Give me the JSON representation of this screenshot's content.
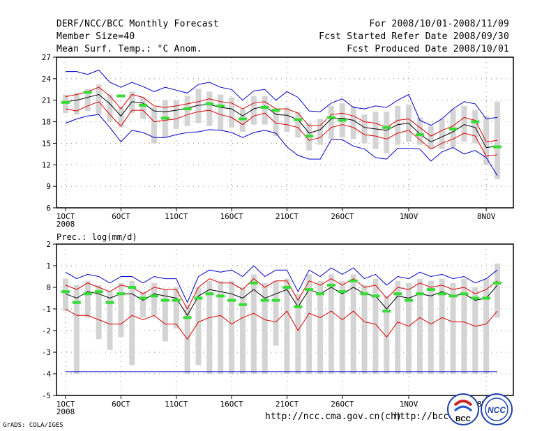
{
  "header": {
    "title": "DERF/NCC/BCC Monthly Forecast",
    "members": "Member Size=40",
    "variable": "Mean Surf. Temp.: °C Anom.",
    "period": "For 2008/10/01-2008/11/09",
    "started": "Fcst Started Refer Date 2008/09/30",
    "produced": "Fcst Produced Date 2008/10/01"
  },
  "footer": {
    "url1": "http://ncc.cma.gov.cn(ch)",
    "url2": "http://bcc.",
    "credit": "GrADS: COLA/IGES",
    "logo_left": "BCC",
    "logo_right": "NCC"
  },
  "colors": {
    "envelope": "#0000cc",
    "spread": "#dd0000",
    "mean": "#000000",
    "obs": "#33dd33",
    "box": "#d4d4d4",
    "grid": "#888888"
  },
  "chart_data": [
    {
      "type": "line",
      "title": "Mean Surf. Temp.: °C Anom.",
      "ylim": [
        6,
        27
      ],
      "yticks": [
        6,
        9,
        12,
        15,
        18,
        21,
        24,
        27
      ],
      "xticks": [
        {
          "day": 1,
          "label": "1OCT",
          "sub": "2008"
        },
        {
          "day": 6,
          "label": "6OCT"
        },
        {
          "day": 11,
          "label": "11OCT"
        },
        {
          "day": 16,
          "label": "16OCT"
        },
        {
          "day": 21,
          "label": "21OCT"
        },
        {
          "day": 26,
          "label": "26OCT"
        },
        {
          "day": 32,
          "label": "1NOV"
        },
        {
          "day": 39,
          "label": "8NOV"
        }
      ],
      "x": [
        1,
        2,
        3,
        4,
        5,
        6,
        7,
        8,
        9,
        10,
        11,
        12,
        13,
        14,
        15,
        16,
        17,
        18,
        19,
        20,
        21,
        22,
        23,
        24,
        25,
        26,
        27,
        28,
        29,
        30,
        31,
        32,
        33,
        34,
        35,
        36,
        37,
        38,
        39,
        40
      ],
      "series": [
        {
          "name": "max",
          "values": [
            25.0,
            25.0,
            24.6,
            25.2,
            23.5,
            22.8,
            23.5,
            22.9,
            22.2,
            22.8,
            22.4,
            22.0,
            23.2,
            23.5,
            22.8,
            22.5,
            21.0,
            22.3,
            22.5,
            21.0,
            22.2,
            21.4,
            19.5,
            19.4,
            20.6,
            21.2,
            20.0,
            19.8,
            20.2,
            20.0,
            21.0,
            21.8,
            18.2,
            17.5,
            18.4,
            19.8,
            20.8,
            20.5,
            18.4,
            18.6
          ]
        },
        {
          "name": "spread_upper",
          "values": [
            21.5,
            21.8,
            22.2,
            22.8,
            21.6,
            19.8,
            21.8,
            21.4,
            20.2,
            20.0,
            20.2,
            20.5,
            20.8,
            21.2,
            20.8,
            20.6,
            19.8,
            20.6,
            20.8,
            19.8,
            19.8,
            19.2,
            17.4,
            17.5,
            19.0,
            19.2,
            18.8,
            18.0,
            17.8,
            17.2,
            18.2,
            18.4,
            17.2,
            16.0,
            16.8,
            17.4,
            18.6,
            18.2,
            15.2,
            15.4
          ]
        },
        {
          "name": "mean",
          "values": [
            20.8,
            21.0,
            21.4,
            21.8,
            20.5,
            18.8,
            20.8,
            20.6,
            19.5,
            19.4,
            19.6,
            19.9,
            20.3,
            20.4,
            20.0,
            19.8,
            18.8,
            19.8,
            20.2,
            19.0,
            18.9,
            18.3,
            16.4,
            16.9,
            18.4,
            18.5,
            18.2,
            17.2,
            17.0,
            16.8,
            17.6,
            17.8,
            16.3,
            15.2,
            15.9,
            16.6,
            17.6,
            17.2,
            14.4,
            14.6
          ]
        },
        {
          "name": "spread_lower",
          "values": [
            19.8,
            19.5,
            20.2,
            20.8,
            19.0,
            17.4,
            19.6,
            19.6,
            18.0,
            18.2,
            18.4,
            19.0,
            19.4,
            19.6,
            19.0,
            18.6,
            17.6,
            18.8,
            19.2,
            17.8,
            17.6,
            17.2,
            15.4,
            15.8,
            17.2,
            17.6,
            17.2,
            16.2,
            16.0,
            15.6,
            16.4,
            16.8,
            15.5,
            14.2,
            15.0,
            15.6,
            16.4,
            16.0,
            13.2,
            13.4
          ]
        },
        {
          "name": "min",
          "values": [
            17.8,
            18.4,
            18.8,
            19.0,
            17.2,
            15.2,
            16.8,
            16.5,
            15.8,
            15.8,
            16.2,
            16.5,
            16.6,
            16.9,
            16.8,
            16.5,
            15.8,
            16.5,
            16.8,
            16.4,
            14.5,
            13.3,
            12.8,
            12.8,
            15.5,
            15.5,
            14.6,
            14.2,
            13.0,
            12.8,
            14.3,
            14.3,
            14.2,
            12.5,
            13.8,
            14.4,
            13.5,
            14.0,
            13.0,
            10.5
          ]
        }
      ],
      "boxes": [
        {
          "low": 19.2,
          "high": 21.8
        },
        {
          "low": 19.0,
          "high": 22.0
        },
        {
          "low": 19.5,
          "high": 22.6
        },
        {
          "low": 19.0,
          "high": 23.2
        },
        {
          "low": 18.0,
          "high": 21.8
        },
        {
          "low": 17.2,
          "high": 20.0
        },
        {
          "low": 19.2,
          "high": 22.2
        },
        {
          "low": 18.4,
          "high": 21.4
        },
        {
          "low": 15.0,
          "high": 20.0
        },
        {
          "low": 15.8,
          "high": 21.0
        },
        {
          "low": 17.0,
          "high": 21.0
        },
        {
          "low": 17.4,
          "high": 21.6
        },
        {
          "low": 17.8,
          "high": 22.6
        },
        {
          "low": 17.4,
          "high": 22.2
        },
        {
          "low": 16.8,
          "high": 21.8
        },
        {
          "low": 17.2,
          "high": 21.4
        },
        {
          "low": 16.6,
          "high": 19.8
        },
        {
          "low": 17.6,
          "high": 21.6
        },
        {
          "low": 17.6,
          "high": 21.6
        },
        {
          "low": 16.0,
          "high": 19.8
        },
        {
          "low": 16.6,
          "high": 20.0
        },
        {
          "low": 15.8,
          "high": 19.4
        },
        {
          "low": 14.0,
          "high": 17.8
        },
        {
          "low": 14.8,
          "high": 18.4
        },
        {
          "low": 15.6,
          "high": 20.2
        },
        {
          "low": 15.8,
          "high": 20.6
        },
        {
          "low": 15.6,
          "high": 20.2
        },
        {
          "low": 15.0,
          "high": 19.0
        },
        {
          "low": 14.2,
          "high": 19.4
        },
        {
          "low": 13.6,
          "high": 19.4
        },
        {
          "low": 14.8,
          "high": 20.2
        },
        {
          "low": 15.2,
          "high": 20.4
        },
        {
          "low": 14.8,
          "high": 18.6
        },
        {
          "low": 14.2,
          "high": 17.4
        },
        {
          "low": 14.2,
          "high": 18.4
        },
        {
          "low": 14.4,
          "high": 19.8
        },
        {
          "low": 15.2,
          "high": 20.2
        },
        {
          "low": 15.0,
          "high": 19.6
        },
        {
          "low": 12.0,
          "high": 18.8
        },
        {
          "low": 10.0,
          "high": 20.8
        }
      ],
      "obs": [
        20.7,
        null,
        22.1,
        null,
        null,
        21.6,
        null,
        20.3,
        null,
        18.5,
        null,
        19.8,
        null,
        20.5,
        20.2,
        null,
        18.4,
        null,
        20.0,
        19.6,
        null,
        18.3,
        16.0,
        null,
        18.6,
        18.2,
        null,
        null,
        null,
        17.2,
        null,
        null,
        16.2,
        null,
        null,
        17.0,
        null,
        18.0,
        null,
        14.5
      ]
    },
    {
      "type": "line",
      "title": "Prec.: log(mm/d)",
      "ylabel": "Prec.: log(mm/d)",
      "ylim": [
        -5,
        2
      ],
      "yticks": [
        -5,
        -4,
        -3,
        -2,
        -1,
        0,
        1,
        2
      ],
      "xticks": [
        {
          "day": 1,
          "label": "1OCT",
          "sub": "2008"
        },
        {
          "day": 6,
          "label": "6OCT"
        },
        {
          "day": 11,
          "label": "11OCT"
        },
        {
          "day": 16,
          "label": "16OCT"
        },
        {
          "day": 21,
          "label": "21OCT"
        },
        {
          "day": 26,
          "label": "26OCT"
        },
        {
          "day": 32,
          "label": "1NOV"
        },
        {
          "day": 39,
          "label": "8NOV"
        }
      ],
      "x": [
        1,
        2,
        3,
        4,
        5,
        6,
        7,
        8,
        9,
        10,
        11,
        12,
        13,
        14,
        15,
        16,
        17,
        18,
        19,
        20,
        21,
        22,
        23,
        24,
        25,
        26,
        27,
        28,
        29,
        30,
        31,
        32,
        33,
        34,
        35,
        36,
        37,
        38,
        39,
        40
      ],
      "series": [
        {
          "name": "max",
          "values": [
            0.7,
            0.4,
            0.6,
            0.5,
            0.2,
            0.5,
            0.5,
            0.2,
            0.5,
            0.4,
            0.4,
            -0.7,
            0.5,
            0.8,
            0.7,
            0.8,
            0.5,
            1.0,
            0.5,
            0.8,
            0.8,
            -0.2,
            0.8,
            0.5,
            0.9,
            0.6,
            0.9,
            0.4,
            0.6,
            0.1,
            0.5,
            0.4,
            0.7,
            0.5,
            0.6,
            0.4,
            0.5,
            0.2,
            0.4,
            0.8
          ]
        },
        {
          "name": "spread_upper",
          "values": [
            0.1,
            -0.1,
            0.2,
            0.0,
            -0.2,
            0.1,
            0.0,
            -0.3,
            0.0,
            -0.1,
            -0.1,
            -1.0,
            0.0,
            0.4,
            0.2,
            0.2,
            -0.1,
            0.4,
            0.0,
            0.3,
            0.3,
            -0.6,
            0.3,
            0.1,
            0.4,
            0.1,
            0.4,
            0.0,
            0.1,
            -0.5,
            0.0,
            -0.1,
            0.2,
            0.0,
            0.1,
            -0.1,
            0.0,
            -0.3,
            -0.1,
            0.3
          ]
        },
        {
          "name": "mean",
          "values": [
            -0.3,
            -0.5,
            -0.2,
            -0.3,
            -0.5,
            -0.3,
            -0.3,
            -0.6,
            -0.3,
            -0.4,
            -0.5,
            -1.3,
            -0.4,
            -0.1,
            -0.2,
            -0.3,
            -0.5,
            -0.1,
            -0.5,
            -0.3,
            -0.1,
            -0.9,
            -0.1,
            -0.3,
            0.0,
            -0.3,
            0.0,
            -0.3,
            -0.4,
            -1.0,
            -0.4,
            -0.5,
            -0.3,
            -0.4,
            -0.2,
            -0.4,
            -0.3,
            -0.6,
            -0.5,
            0.1
          ]
        },
        {
          "name": "spread_lower",
          "values": [
            -1.0,
            -1.3,
            -1.3,
            -1.5,
            -1.7,
            -1.7,
            -1.3,
            -1.5,
            -1.3,
            -1.7,
            -1.7,
            -2.4,
            -1.6,
            -1.4,
            -1.3,
            -1.7,
            -1.4,
            -1.2,
            -1.5,
            -1.6,
            -1.1,
            -2.0,
            -1.2,
            -1.4,
            -1.1,
            -1.5,
            -1.1,
            -1.6,
            -1.7,
            -2.3,
            -1.6,
            -1.8,
            -1.4,
            -1.7,
            -1.4,
            -1.6,
            -1.6,
            -1.8,
            -1.7,
            -1.1
          ]
        },
        {
          "name": "min",
          "values": [
            -3.9,
            -3.9,
            -3.9,
            -3.9,
            -3.9,
            -3.9,
            -3.9,
            -3.9,
            -3.9,
            -3.9,
            -3.9,
            -3.9,
            -3.9,
            -3.9,
            -3.9,
            -3.9,
            -3.9,
            -3.9,
            -3.9,
            -3.9,
            -3.9,
            -3.9,
            -3.9,
            -3.9,
            -3.9,
            -3.9,
            -3.9,
            -3.9,
            -3.9,
            -3.9,
            -3.9,
            -3.9,
            -3.9,
            -3.9,
            -3.9,
            -3.9,
            -3.9,
            -3.9,
            -3.9,
            -3.9
          ]
        }
      ],
      "boxes": [
        {
          "low": -1.1,
          "high": 0.4
        },
        {
          "low": -4.0,
          "high": 0.1
        },
        {
          "low": -1.4,
          "high": 0.3
        },
        {
          "low": -2.4,
          "high": 0.1
        },
        {
          "low": -2.9,
          "high": -0.2
        },
        {
          "low": -2.3,
          "high": 0.2
        },
        {
          "low": -3.6,
          "high": 0.3
        },
        {
          "low": -1.4,
          "high": -0.2
        },
        {
          "low": -1.3,
          "high": 0.2
        },
        {
          "low": -2.5,
          "high": -0.1
        },
        {
          "low": -1.9,
          "high": 0.0
        },
        {
          "low": -4.0,
          "high": -0.8
        },
        {
          "low": -3.6,
          "high": 0.0
        },
        {
          "low": -4.0,
          "high": 0.3
        },
        {
          "low": -4.0,
          "high": 0.3
        },
        {
          "low": -4.0,
          "high": 0.3
        },
        {
          "low": -4.0,
          "high": 0.0
        },
        {
          "low": -4.0,
          "high": 0.6
        },
        {
          "low": -4.0,
          "high": 0.2
        },
        {
          "low": -2.7,
          "high": 0.3
        },
        {
          "low": -4.0,
          "high": 0.4
        },
        {
          "low": -4.0,
          "high": -0.3
        },
        {
          "low": -4.0,
          "high": 0.6
        },
        {
          "low": -4.0,
          "high": 0.3
        },
        {
          "low": -4.0,
          "high": 0.6
        },
        {
          "low": -4.0,
          "high": 0.3
        },
        {
          "low": -4.0,
          "high": 0.6
        },
        {
          "low": -4.0,
          "high": 0.1
        },
        {
          "low": -4.0,
          "high": 0.4
        },
        {
          "low": -4.0,
          "high": -0.4
        },
        {
          "low": -4.0,
          "high": 0.3
        },
        {
          "low": -4.0,
          "high": 0.2
        },
        {
          "low": -4.0,
          "high": 0.4
        },
        {
          "low": -4.0,
          "high": 0.3
        },
        {
          "low": -4.0,
          "high": 0.4
        },
        {
          "low": -4.0,
          "high": 0.2
        },
        {
          "low": -4.0,
          "high": 0.4
        },
        {
          "low": -4.0,
          "high": 0.0
        },
        {
          "low": -4.0,
          "high": 0.4
        },
        {
          "low": -1.4,
          "high": 1.1
        }
      ],
      "obs": [
        -0.2,
        -0.7,
        -0.3,
        -0.2,
        -0.7,
        -0.3,
        0.0,
        -0.5,
        -0.4,
        -0.6,
        -0.6,
        -1.4,
        -0.5,
        -0.3,
        -0.4,
        -0.6,
        -0.8,
        0.2,
        -0.6,
        -0.6,
        0.0,
        -0.9,
        -0.1,
        -0.3,
        0.1,
        -0.2,
        0.3,
        -0.3,
        -0.4,
        -1.1,
        -0.3,
        -0.6,
        -0.3,
        -0.1,
        -0.3,
        -0.4,
        -0.3,
        -0.5,
        -0.5,
        0.2
      ]
    }
  ]
}
